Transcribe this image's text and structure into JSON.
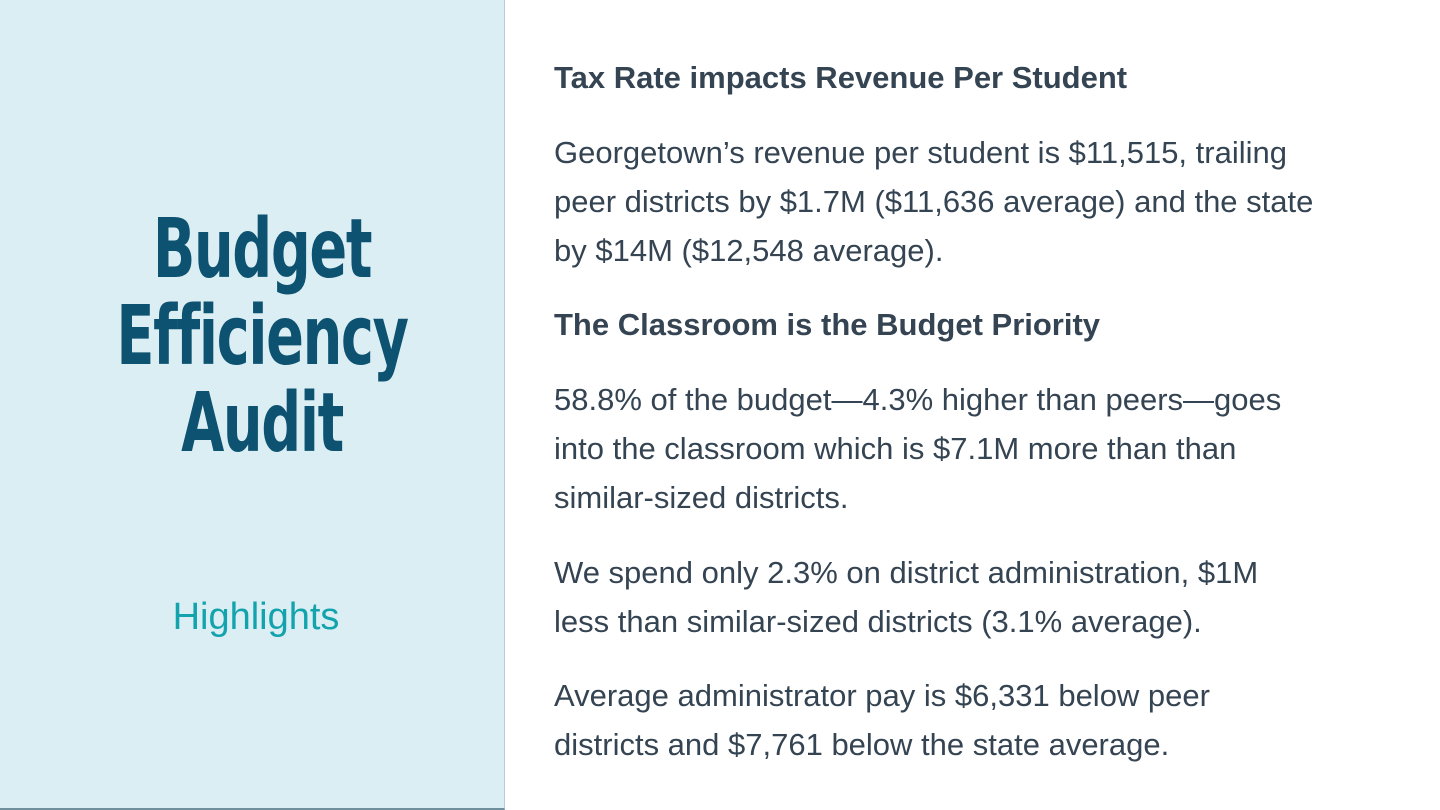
{
  "title_lines": [
    "Budget",
    "Efficiency",
    "Audit"
  ],
  "subtitle": "Highlights",
  "sections": [
    {
      "heading": "Tax Rate impacts Revenue Per Student",
      "paragraphs": [
        {
          "lines": [
            "Georgetown’s revenue per student is $11,515, trailing",
            "peer districts by $1.7M ($11,636 average) and the state",
            "by $14M ($12,548 average)."
          ]
        }
      ]
    },
    {
      "heading": "The Classroom is the Budget Priority",
      "paragraphs": [
        {
          "lines": [
            "58.8% of the budget—4.3% higher than peers—goes",
            "into the classroom which is $7.1M more than than",
            "similar-sized districts."
          ]
        },
        {
          "lines": [
            "We spend only 2.3% on district administration, $1M",
            "less than similar-sized districts (3.1% average)."
          ]
        },
        {
          "lines": [
            "Average administrator pay is $6,331 below peer",
            "districts and $7,761 below the state average."
          ]
        }
      ]
    }
  ]
}
